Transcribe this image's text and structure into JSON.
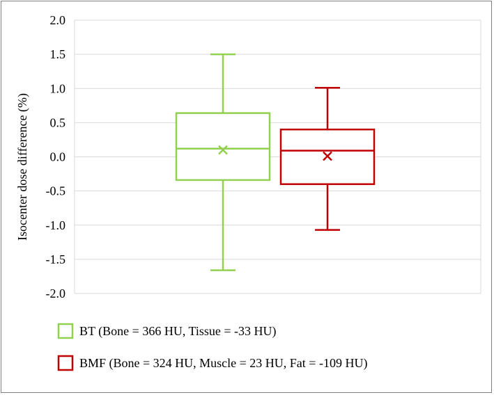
{
  "chart_data": {
    "type": "box",
    "ylabel": "Isocenter dose difference (%)",
    "xlabel": "",
    "title": "",
    "ylim": [
      -2.0,
      2.0
    ],
    "yticks": [
      "2.0",
      "1.5",
      "1.0",
      "0.5",
      "0.0",
      "-0.5",
      "-1.0",
      "-1.5",
      "-2.0"
    ],
    "grid": true,
    "legend_position": "bottom",
    "series": [
      {
        "name": "BT (Bone = 366 HU, Tissue = -33 HU)",
        "color": "#92d050",
        "min": -1.66,
        "q1": -0.34,
        "median": 0.12,
        "mean": 0.1,
        "q3": 0.64,
        "max": 1.5
      },
      {
        "name": "BMF (Bone = 324 HU, Muscle = 23 HU, Fat = -109 HU)",
        "color": "#c00000",
        "min": -1.07,
        "q1": -0.4,
        "median": 0.09,
        "mean": 0.01,
        "q3": 0.4,
        "max": 1.01
      }
    ]
  }
}
